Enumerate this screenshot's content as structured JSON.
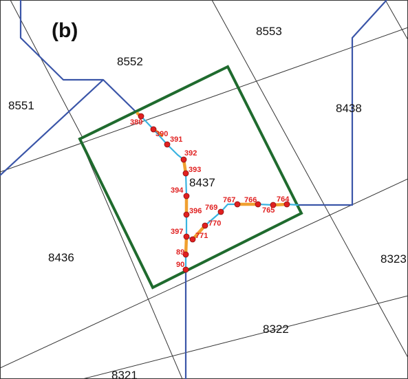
{
  "panel_label": "(b)",
  "tile_labels": {
    "t8553": "8553",
    "t8552": "8552",
    "t8551": "8551",
    "t8438": "8438",
    "t8437": "8437",
    "t8436": "8436",
    "t8323": "8323",
    "t8322": "8322",
    "t8321": "8321"
  },
  "node_labels": {
    "n389": "389",
    "n390": "390",
    "n391": "391",
    "n392": "392",
    "n393": "393",
    "n394": "394",
    "n396": "396",
    "n397": "397",
    "n771": "771",
    "n770": "770",
    "n769": "769",
    "n767": "767",
    "n766": "766",
    "n765": "765",
    "n764": "764",
    "n89": "89",
    "n90": "90"
  },
  "colors": {
    "grid_line": "#333333",
    "boundary_line": "#3a55a8",
    "focus_tile": "#1f6b2e",
    "segment_orange": "#f0a030",
    "segment_cyan": "#39b3e0",
    "node_fill": "#e02020",
    "node_label": "#e02020"
  }
}
